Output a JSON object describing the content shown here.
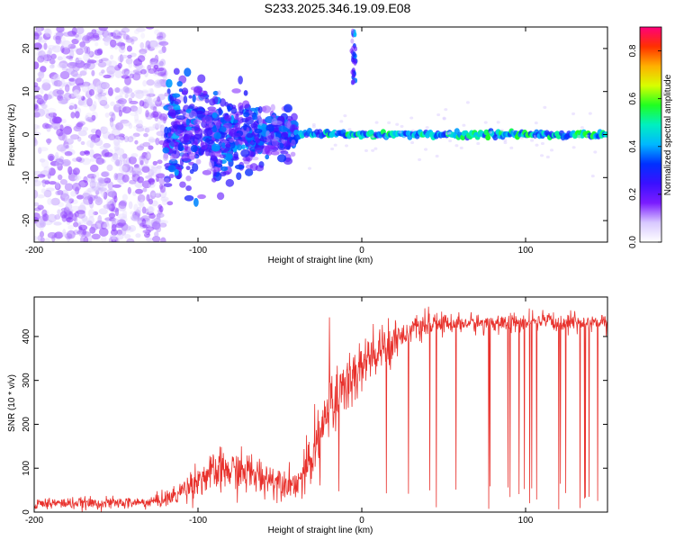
{
  "title": "S233.2025.346.19.09.E08",
  "colors": {
    "snr_line": "#e8312c",
    "scatter_low": "#c9b2f5",
    "scatter_high": "#5a00e0",
    "background": "#ffffff"
  },
  "chart_data": [
    {
      "type": "heatmap",
      "xlabel": "Height of straight line (km)",
      "ylabel": "Frequency (Hz)",
      "xlim": [
        -200,
        150
      ],
      "ylim": [
        -25,
        25
      ],
      "xticks": [
        -200,
        -100,
        0,
        100
      ],
      "yticks": [
        -20,
        -10,
        0,
        10,
        20
      ],
      "grid": false,
      "colorbar": {
        "label": "Normalized spectral amplitude",
        "range": [
          0.0,
          0.9
        ],
        "ticks": [
          "0.0",
          "0.2",
          "0.4",
          "0.6",
          "0.8"
        ],
        "colormap": [
          "#ffffff",
          "#d8c8ff",
          "#7b1cff",
          "#3a10ff",
          "#0030ff",
          "#00b8ff",
          "#00f0c0",
          "#20ff20",
          "#d8ff00",
          "#ffb000",
          "#ff3000",
          "#ff007a"
        ]
      },
      "features": [
        {
          "label": "scattered low-amplitude energy",
          "x_range": [
            -200,
            -120
          ],
          "freq_range": [
            -25,
            25
          ],
          "amplitude": 0.1
        },
        {
          "label": "converging energy",
          "x_range": [
            -120,
            -40
          ],
          "freq_range": [
            -15,
            15
          ],
          "amplitude": 0.25
        },
        {
          "label": "dominant narrow line",
          "x_range": [
            -40,
            150
          ],
          "center_freq": 0,
          "half_width": 1.5,
          "amplitude": 0.5
        },
        {
          "label": "isolated high-frequency feature",
          "x": -5,
          "freq_range": [
            12,
            25
          ],
          "amplitude": 0.35
        }
      ]
    },
    {
      "type": "line",
      "xlabel": "Height of straight line (km)",
      "ylabel": "SNR (10 * v/v)",
      "xlim": [
        -200,
        150
      ],
      "ylim": [
        0,
        490
      ],
      "xticks": [
        -200,
        -100,
        0,
        100
      ],
      "yticks": [
        0,
        100,
        200,
        300,
        400
      ],
      "grid": false,
      "series": [
        {
          "x": [
            -200,
            -160,
            -130,
            -115,
            -100,
            -85,
            -70,
            -55,
            -40,
            -32,
            -25,
            -20,
            -10,
            0,
            10,
            20,
            30,
            40,
            50,
            70,
            100,
            130,
            150
          ],
          "values": [
            20,
            20,
            22,
            35,
            75,
            95,
            90,
            75,
            65,
            100,
            200,
            240,
            290,
            330,
            360,
            395,
            415,
            425,
            430,
            430,
            432,
            433,
            433
          ],
          "noise": [
            15,
            15,
            15,
            25,
            45,
            55,
            55,
            45,
            35,
            80,
            100,
            100,
            90,
            90,
            70,
            50,
            30,
            30,
            25,
            25,
            25,
            25,
            25
          ]
        }
      ]
    }
  ]
}
